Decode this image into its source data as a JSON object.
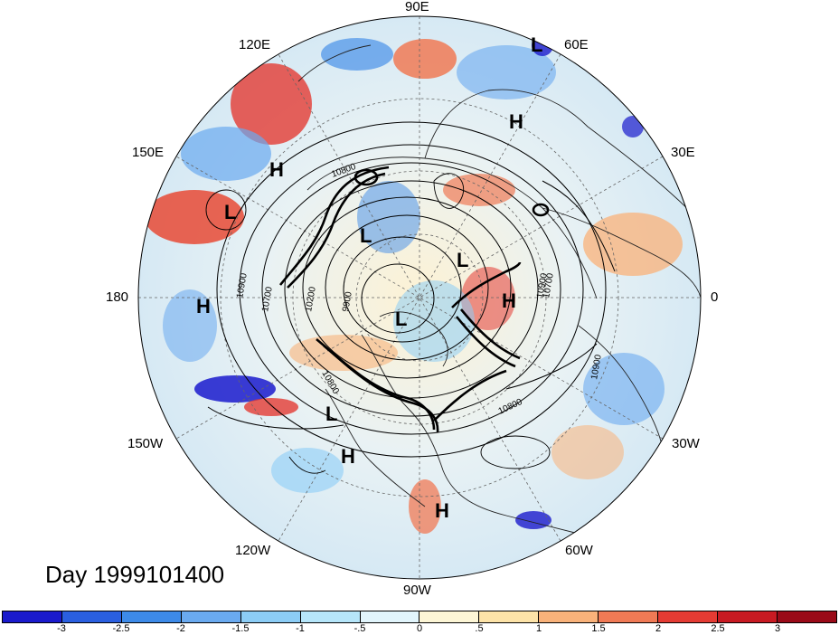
{
  "map": {
    "projection": "north polar stereographic",
    "longitude_labels": [
      "90E",
      "60E",
      "30E",
      "0",
      "30W",
      "60W",
      "90W",
      "120W",
      "150W",
      "180",
      "150E",
      "120E"
    ],
    "pressure_systems": [
      {
        "type": "L"
      },
      {
        "type": "H"
      },
      {
        "type": "H"
      },
      {
        "type": "L"
      },
      {
        "type": "L"
      },
      {
        "type": "L"
      },
      {
        "type": "H"
      },
      {
        "type": "H"
      },
      {
        "type": "L"
      },
      {
        "type": "L"
      },
      {
        "type": "H"
      },
      {
        "type": "H"
      }
    ],
    "contour_labels": [
      "10800",
      "10700",
      "10200",
      "9900",
      "10900",
      "10800",
      "10900",
      "10800",
      "10900",
      "10700"
    ]
  },
  "title": "Day 1999101400",
  "colorbar": {
    "colors": [
      "#1a1acc",
      "#2a5fe0",
      "#3d8ae8",
      "#6aaaf0",
      "#8ccdf6",
      "#b6e6fa",
      "#e2f5fc",
      "#fdf6d6",
      "#fde3a8",
      "#f9b27a",
      "#f07a55",
      "#e43b33",
      "#c81a22",
      "#9a0a18"
    ],
    "tick_labels": [
      "-3",
      "-2.5",
      "-2",
      "-1.5",
      "-1",
      "-.5",
      "0",
      ".5",
      "1",
      "1.5",
      "2",
      "2.5",
      "3"
    ]
  }
}
